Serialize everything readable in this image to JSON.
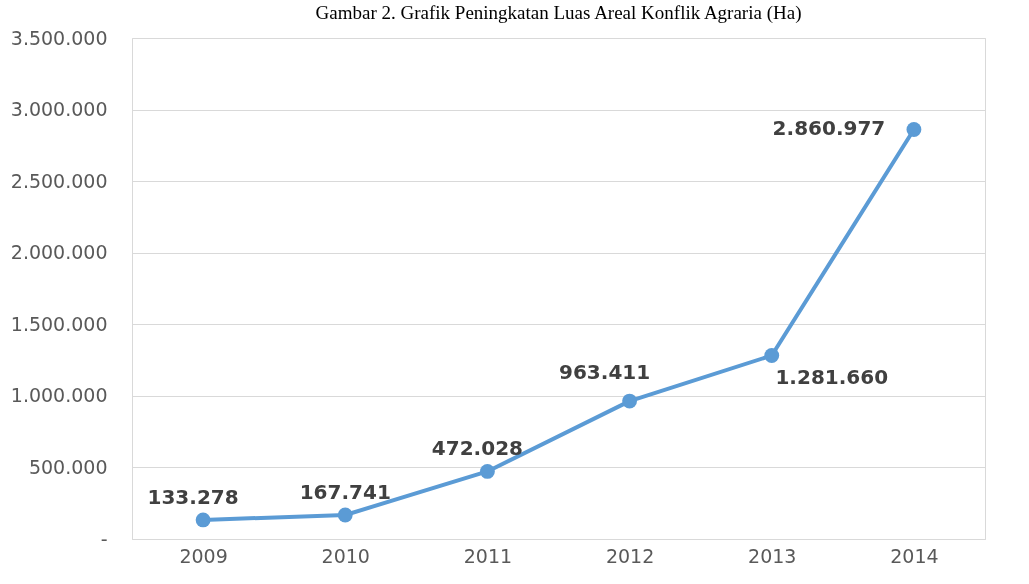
{
  "chart_data": {
    "type": "line",
    "title": "Gambar 2. Grafik Peningkatan Luas Areal Konflik Agraria (Ha)",
    "categories": [
      "2009",
      "2010",
      "2011",
      "2012",
      "2013",
      "2014"
    ],
    "series": [
      {
        "color": "#5b9bd5",
        "values": [
          133278,
          167741,
          472028,
          963411,
          1281660,
          2860977
        ],
        "value_labels": [
          "133.278",
          "167.741",
          "472.028",
          "963.411",
          "1.281.660",
          "2.860.977"
        ]
      }
    ],
    "ylim": [
      0,
      3500000
    ],
    "yticks": [
      {
        "value": 0,
        "label": "-"
      },
      {
        "value": 500000,
        "label": "500.000"
      },
      {
        "value": 1000000,
        "label": "1.000.000"
      },
      {
        "value": 1500000,
        "label": "1.500.000"
      },
      {
        "value": 2000000,
        "label": "2.000.000"
      },
      {
        "value": 2500000,
        "label": "2.500.000"
      },
      {
        "value": 3000000,
        "label": "3.000.000"
      },
      {
        "value": 3500000,
        "label": "3.500.000"
      }
    ],
    "grid": "y",
    "marker": "circle",
    "line_style": "solid"
  }
}
